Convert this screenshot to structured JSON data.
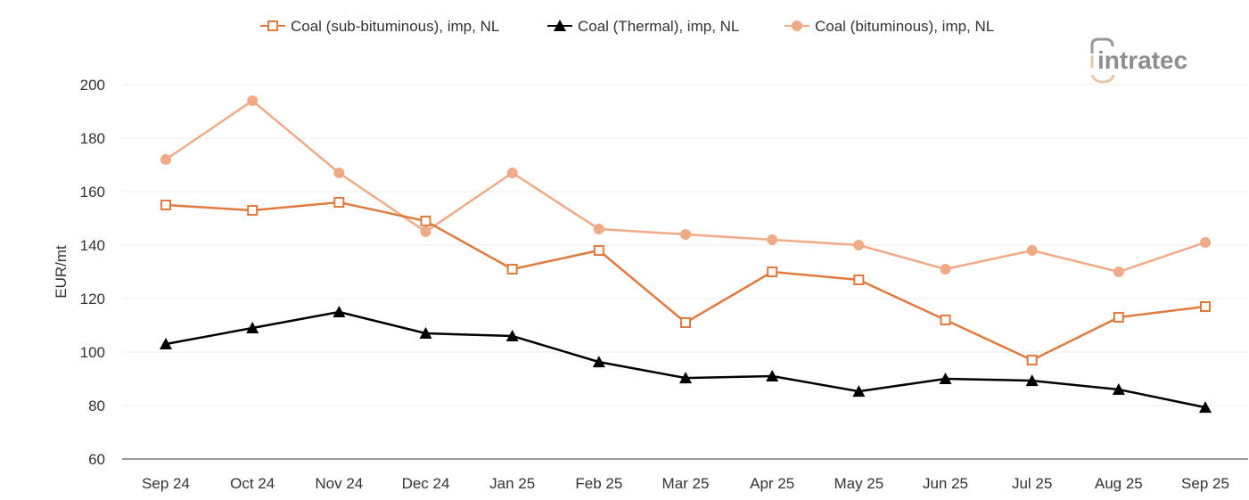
{
  "chart_data": {
    "type": "line",
    "title": "",
    "xlabel": "",
    "ylabel": "EUR/mt",
    "ylim": [
      60,
      200
    ],
    "yticks": [
      60,
      80,
      100,
      120,
      140,
      160,
      180,
      200
    ],
    "grid": true,
    "legend_position": "top",
    "categories": [
      "Sep 24",
      "Oct 24",
      "Nov 24",
      "Dec 24",
      "Jan 25",
      "Feb 25",
      "Mar 25",
      "Apr 25",
      "May 25",
      "Jun 25",
      "Jul 25",
      "Aug 25",
      "Sep 25"
    ],
    "series": [
      {
        "name": "Coal (sub-bituminous), imp, NL",
        "color": "#e07a3e",
        "marker": "open-square",
        "values": [
          155,
          153,
          156,
          149,
          131,
          138,
          111,
          130,
          127,
          112,
          97,
          113,
          117
        ]
      },
      {
        "name": "Coal (Thermal), imp, NL",
        "color": "#000000",
        "marker": "triangle",
        "values": [
          103,
          109,
          115,
          107,
          106,
          96.3,
          90.3,
          91,
          85.3,
          90,
          89.3,
          86,
          79.3
        ]
      },
      {
        "name": "Coal (bituminous), imp, NL",
        "color": "#f0aa86",
        "marker": "circle",
        "values": [
          172,
          194,
          167,
          145,
          167,
          146,
          144,
          142,
          140,
          131,
          138,
          130,
          141
        ]
      }
    ]
  },
  "logo": {
    "text": "intratec"
  }
}
